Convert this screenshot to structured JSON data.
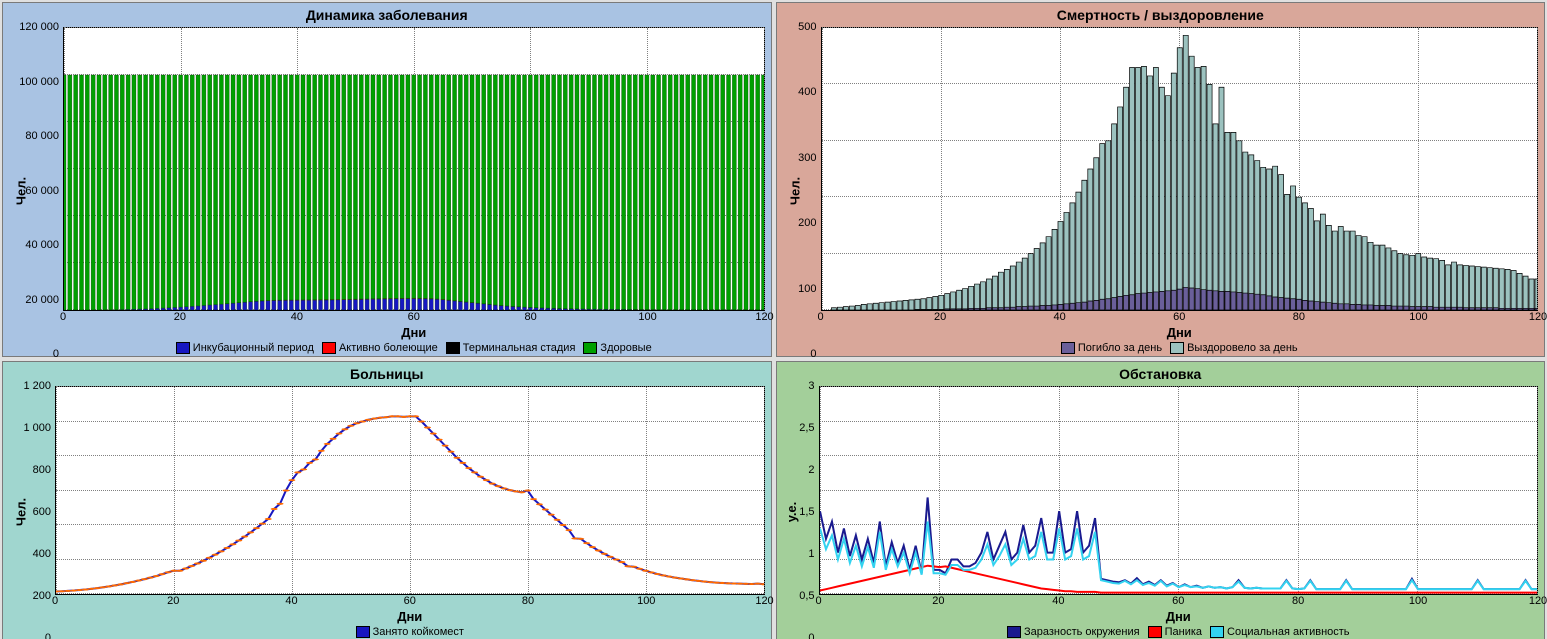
{
  "panels": {
    "disease": {
      "title": "Динамика заболевания",
      "bg": "#a9c3e3",
      "xlabel": "Дни",
      "ylabel": "Чел.",
      "xlim": [
        0,
        120
      ],
      "xtick_step": 20,
      "ylim": [
        0,
        120000
      ],
      "ytick_step": 20000,
      "ytick_format": "space_thousands",
      "type": "stacked-bar",
      "series": [
        {
          "name": "Инкубационный период",
          "color": "#1717c1"
        },
        {
          "name": "Активно болеющие",
          "color": "#ff0000"
        },
        {
          "name": "Терминальная стадия",
          "color": "#000000"
        },
        {
          "name": "Здоровые",
          "color": "#00a000"
        }
      ],
      "bars_step": 1,
      "healthy_value": 100000,
      "incubation": [
        0,
        0,
        5,
        8,
        15,
        25,
        40,
        60,
        90,
        130,
        180,
        240,
        310,
        390,
        480,
        580,
        690,
        810,
        940,
        1080,
        1230,
        1390,
        1560,
        1740,
        1930,
        2120,
        2310,
        2500,
        2700,
        2900,
        3100,
        3300,
        3500,
        3700,
        3850,
        3950,
        4020,
        4070,
        4100,
        4120,
        4140,
        4160,
        4180,
        4200,
        4220,
        4250,
        4280,
        4320,
        4360,
        4400,
        4450,
        4500,
        4550,
        4600,
        4640,
        4700,
        4750,
        4780,
        4800,
        4820,
        4830,
        4820,
        4780,
        4700,
        4550,
        4350,
        4100,
        3850,
        3600,
        3350,
        3100,
        2850,
        2600,
        2350,
        2100,
        1880,
        1680,
        1500,
        1340,
        1200,
        1080,
        970,
        870,
        780,
        700,
        630,
        570,
        520,
        470,
        430,
        390,
        360,
        330,
        300,
        280,
        260,
        240,
        220,
        200,
        185,
        170,
        160,
        150,
        140,
        130,
        120,
        115,
        110,
        105,
        100,
        95,
        90,
        88,
        86,
        84,
        82,
        80,
        78,
        76,
        74,
        72
      ],
      "active_ill": [
        0,
        0,
        0,
        0,
        0,
        0,
        0,
        0,
        0,
        0,
        0,
        0,
        0,
        0,
        0,
        0,
        0,
        0,
        0,
        0,
        0,
        0,
        0,
        0,
        0,
        0,
        0,
        0,
        10,
        15,
        25,
        40,
        55,
        75,
        95,
        115,
        130,
        145,
        155,
        162,
        166,
        168,
        170,
        171,
        172,
        173,
        174,
        175,
        176,
        177,
        178,
        179,
        180,
        181,
        182,
        183,
        184,
        185,
        186,
        187,
        188,
        187,
        185,
        182,
        175,
        165,
        150,
        135,
        120,
        105,
        92,
        80,
        70,
        61,
        54,
        47,
        42,
        37,
        33,
        30,
        27,
        24,
        22,
        20,
        18,
        16,
        15,
        14,
        13,
        12,
        11,
        10,
        9,
        8,
        8,
        7,
        7,
        6,
        6,
        6,
        6,
        5,
        5,
        5,
        5,
        5,
        5,
        4,
        4,
        4,
        4,
        4,
        4,
        4,
        4,
        4,
        4,
        3,
        3,
        3,
        3
      ],
      "terminal": [
        0,
        0,
        0,
        0,
        0,
        0,
        0,
        0,
        0,
        0,
        0,
        0,
        0,
        0,
        0,
        0,
        0,
        0,
        0,
        0,
        0,
        0,
        0,
        0,
        0,
        0,
        0,
        0,
        0,
        0,
        0,
        0,
        0,
        0,
        0,
        0,
        0,
        0,
        0,
        0,
        0,
        0,
        0,
        0,
        0,
        0,
        0,
        0,
        0,
        0,
        0,
        0,
        0,
        0,
        0,
        0,
        0,
        0,
        0,
        0,
        0,
        0,
        0,
        0,
        0,
        0,
        0,
        0,
        0,
        0,
        0,
        0,
        0,
        0,
        0,
        0,
        0,
        0,
        0,
        0,
        0,
        0,
        0,
        0,
        0,
        0,
        0,
        0,
        0,
        0,
        0,
        0,
        0,
        0,
        0,
        0,
        0,
        0,
        0,
        0,
        0,
        0,
        0,
        0,
        0,
        0,
        0,
        0,
        0,
        0,
        0,
        0,
        0,
        0,
        0,
        0,
        0,
        0,
        0,
        0,
        0
      ]
    },
    "mortality": {
      "title": "Смертность / выздоровление",
      "bg": "#d9a79a",
      "xlabel": "Дни",
      "ylabel": "Чел.",
      "xlim": [
        0,
        120
      ],
      "xtick_step": 20,
      "ylim": [
        0,
        500
      ],
      "ytick_step": 100,
      "type": "bar",
      "series": [
        {
          "name": "Погибло за день",
          "color": "#6a5f9a"
        },
        {
          "name": "Выздоровело за день",
          "color": "#9cc2bf"
        }
      ],
      "recovered": [
        0,
        0,
        4,
        5,
        6,
        7,
        8,
        10,
        11,
        12,
        13,
        14,
        15,
        16,
        17,
        18,
        19,
        20,
        22,
        24,
        26,
        29,
        32,
        35,
        38,
        42,
        46,
        50,
        55,
        60,
        67,
        72,
        78,
        85,
        92,
        100,
        109,
        119,
        130,
        143,
        157,
        173,
        190,
        209,
        230,
        250,
        270,
        295,
        300,
        330,
        360,
        395,
        430,
        430,
        432,
        415,
        430,
        395,
        380,
        420,
        465,
        487,
        450,
        430,
        432,
        400,
        330,
        395,
        315,
        315,
        300,
        280,
        275,
        265,
        253,
        250,
        255,
        240,
        205,
        220,
        200,
        190,
        180,
        158,
        170,
        150,
        140,
        148,
        140,
        140,
        132,
        130,
        120,
        115,
        115,
        110,
        105,
        100,
        98,
        97,
        100,
        94,
        92,
        91,
        88,
        80,
        85,
        80,
        79,
        78,
        77,
        76,
        75,
        74,
        73,
        72,
        70,
        65,
        60,
        55,
        55
      ],
      "died": [
        0,
        0,
        0,
        0,
        0,
        0,
        0,
        0,
        0,
        0,
        0,
        0,
        0,
        0,
        0,
        0,
        1,
        1,
        1,
        1,
        1,
        2,
        2,
        2,
        2,
        3,
        3,
        3,
        4,
        4,
        4,
        5,
        5,
        6,
        6,
        7,
        7,
        8,
        8,
        9,
        10,
        11,
        12,
        13,
        14,
        16,
        17,
        19,
        20,
        22,
        24,
        26,
        27,
        29,
        30,
        31,
        32,
        33,
        34,
        35,
        37,
        40,
        39,
        38,
        36,
        35,
        34,
        33,
        33,
        32,
        31,
        30,
        29,
        28,
        27,
        25,
        23,
        22,
        21,
        20,
        19,
        17,
        16,
        15,
        14,
        13,
        12,
        11,
        11,
        10,
        10,
        9,
        9,
        8,
        8,
        8,
        7,
        7,
        7,
        6,
        6,
        6,
        6,
        5,
        5,
        5,
        5,
        5,
        4,
        4,
        4,
        4,
        4,
        4,
        3,
        3,
        3,
        3,
        3,
        3,
        3
      ]
    },
    "hospitals": {
      "title": "Больницы",
      "bg": "#a0d6cf",
      "xlabel": "Дни",
      "ylabel": "Чел.",
      "xlim": [
        0,
        120
      ],
      "xtick_step": 20,
      "ylim": [
        0,
        1200
      ],
      "ytick_step": 200,
      "ytick_format": "space_thousands",
      "type": "line",
      "series": [
        {
          "name": "Занято койкомест",
          "color": "#1717c1",
          "width": 2,
          "dot_color": "#ff6a00",
          "dot_size": 2.5
        }
      ],
      "beds": [
        15,
        16,
        18,
        20,
        23,
        26,
        30,
        34,
        39,
        44,
        50,
        56,
        63,
        70,
        78,
        86,
        95,
        104,
        115,
        126,
        135,
        135,
        148,
        162,
        177,
        193,
        210,
        228,
        247,
        267,
        288,
        310,
        333,
        357,
        382,
        408,
        435,
        493,
        523,
        600,
        660,
        705,
        722,
        760,
        780,
        830,
        870,
        900,
        930,
        955,
        975,
        990,
        1000,
        1010,
        1017,
        1022,
        1025,
        1030,
        1030,
        1027,
        1030,
        1030,
        1000,
        965,
        930,
        895,
        860,
        825,
        790,
        760,
        730,
        705,
        680,
        660,
        640,
        625,
        612,
        602,
        595,
        590,
        600,
        550,
        520,
        490,
        460,
        430,
        400,
        370,
        322,
        320,
        295,
        272,
        252,
        233,
        216,
        200,
        185,
        161,
        158,
        146,
        135,
        125,
        116,
        108,
        101,
        95,
        90,
        85,
        80,
        76,
        72,
        69,
        66,
        64,
        62,
        61,
        60,
        59,
        58,
        60,
        57
      ]
    },
    "situation": {
      "title": "Обстановка",
      "bg": "#a3cf9a",
      "xlabel": "Дни",
      "ylabel": "у.е.",
      "xlim": [
        0,
        120
      ],
      "xtick_step": 20,
      "ylim": [
        0,
        3
      ],
      "ytick_step": 0.5,
      "type": "line",
      "series": [
        {
          "name": "Заразность окружения",
          "color": "#1a1a8f",
          "width": 2
        },
        {
          "name": "Паника",
          "color": "#ff0000",
          "width": 2
        },
        {
          "name": "Социальная активность",
          "color": "#33d3f0",
          "width": 2
        }
      ],
      "infectivity": [
        1.2,
        0.8,
        1.05,
        0.6,
        0.95,
        0.55,
        0.85,
        0.5,
        0.8,
        0.45,
        1.05,
        0.4,
        0.75,
        0.45,
        0.7,
        0.35,
        0.7,
        0.3,
        1.4,
        0.35,
        0.35,
        0.3,
        0.5,
        0.5,
        0.4,
        0.4,
        0.45,
        0.6,
        0.9,
        0.5,
        0.7,
        0.9,
        0.5,
        0.6,
        1.0,
        0.6,
        0.7,
        1.1,
        0.6,
        0.6,
        1.2,
        0.6,
        0.65,
        1.2,
        0.6,
        0.7,
        1.1,
        0.22,
        0.2,
        0.18,
        0.17,
        0.2,
        0.15,
        0.23,
        0.14,
        0.18,
        0.13,
        0.2,
        0.12,
        0.16,
        0.1,
        0.14,
        0.1,
        0.12,
        0.09,
        0.11,
        0.09,
        0.1,
        0.08,
        0.1,
        0.2,
        0.09,
        0.08,
        0.09,
        0.08,
        0.08,
        0.08,
        0.08,
        0.2,
        0.08,
        0.07,
        0.08,
        0.2,
        0.07,
        0.07,
        0.07,
        0.07,
        0.07,
        0.2,
        0.07,
        0.07,
        0.07,
        0.07,
        0.07,
        0.07,
        0.07,
        0.07,
        0.07,
        0.07,
        0.22,
        0.07,
        0.07,
        0.07,
        0.07,
        0.07,
        0.07,
        0.07,
        0.07,
        0.07,
        0.07,
        0.2,
        0.07,
        0.07,
        0.07,
        0.07,
        0.07,
        0.07,
        0.07,
        0.2,
        0.07,
        0.07
      ],
      "panic": [
        0.05,
        0.07,
        0.09,
        0.11,
        0.13,
        0.15,
        0.17,
        0.19,
        0.21,
        0.23,
        0.25,
        0.27,
        0.29,
        0.31,
        0.33,
        0.35,
        0.37,
        0.39,
        0.41,
        0.4,
        0.39,
        0.4,
        0.38,
        0.36,
        0.34,
        0.32,
        0.3,
        0.28,
        0.26,
        0.24,
        0.22,
        0.2,
        0.18,
        0.16,
        0.14,
        0.12,
        0.1,
        0.08,
        0.07,
        0.06,
        0.05,
        0.04,
        0.04,
        0.03,
        0.03,
        0.03,
        0.03,
        0.02,
        0.02,
        0.02,
        0.02,
        0.02,
        0.02,
        0.02,
        0.02,
        0.02,
        0.02,
        0.02,
        0.02,
        0.02,
        0.02,
        0.02,
        0.02,
        0.02,
        0.02,
        0.02,
        0.02,
        0.02,
        0.02,
        0.02,
        0.02,
        0.02,
        0.02,
        0.02,
        0.02,
        0.02,
        0.02,
        0.02,
        0.02,
        0.02,
        0.02,
        0.02,
        0.02,
        0.02,
        0.02,
        0.02,
        0.02,
        0.02,
        0.02,
        0.02,
        0.02,
        0.02,
        0.02,
        0.02,
        0.02,
        0.02,
        0.02,
        0.02,
        0.02,
        0.02,
        0.02,
        0.02,
        0.02,
        0.02,
        0.02,
        0.02,
        0.02,
        0.02,
        0.02,
        0.02,
        0.02,
        0.02,
        0.02,
        0.02,
        0.02,
        0.02,
        0.02,
        0.02,
        0.02,
        0.02,
        0.02
      ],
      "social": [
        0.95,
        0.65,
        0.85,
        0.5,
        0.8,
        0.45,
        0.7,
        0.4,
        0.68,
        0.38,
        0.9,
        0.35,
        0.65,
        0.4,
        0.6,
        0.3,
        0.6,
        0.28,
        1.05,
        0.3,
        0.3,
        0.28,
        0.42,
        0.42,
        0.35,
        0.35,
        0.38,
        0.5,
        0.72,
        0.42,
        0.55,
        0.72,
        0.42,
        0.5,
        0.8,
        0.5,
        0.55,
        0.9,
        0.5,
        0.5,
        0.95,
        0.5,
        0.55,
        0.95,
        0.5,
        0.55,
        0.9,
        0.2,
        0.18,
        0.16,
        0.15,
        0.19,
        0.14,
        0.2,
        0.13,
        0.16,
        0.12,
        0.19,
        0.11,
        0.15,
        0.1,
        0.13,
        0.1,
        0.11,
        0.09,
        0.11,
        0.09,
        0.1,
        0.08,
        0.1,
        0.18,
        0.09,
        0.08,
        0.09,
        0.08,
        0.08,
        0.08,
        0.08,
        0.19,
        0.08,
        0.07,
        0.08,
        0.19,
        0.07,
        0.07,
        0.07,
        0.07,
        0.07,
        0.19,
        0.07,
        0.07,
        0.07,
        0.07,
        0.07,
        0.07,
        0.07,
        0.07,
        0.07,
        0.07,
        0.2,
        0.07,
        0.07,
        0.07,
        0.07,
        0.07,
        0.07,
        0.07,
        0.07,
        0.07,
        0.07,
        0.19,
        0.07,
        0.07,
        0.07,
        0.07,
        0.07,
        0.07,
        0.07,
        0.19,
        0.07,
        0.07
      ]
    }
  }
}
